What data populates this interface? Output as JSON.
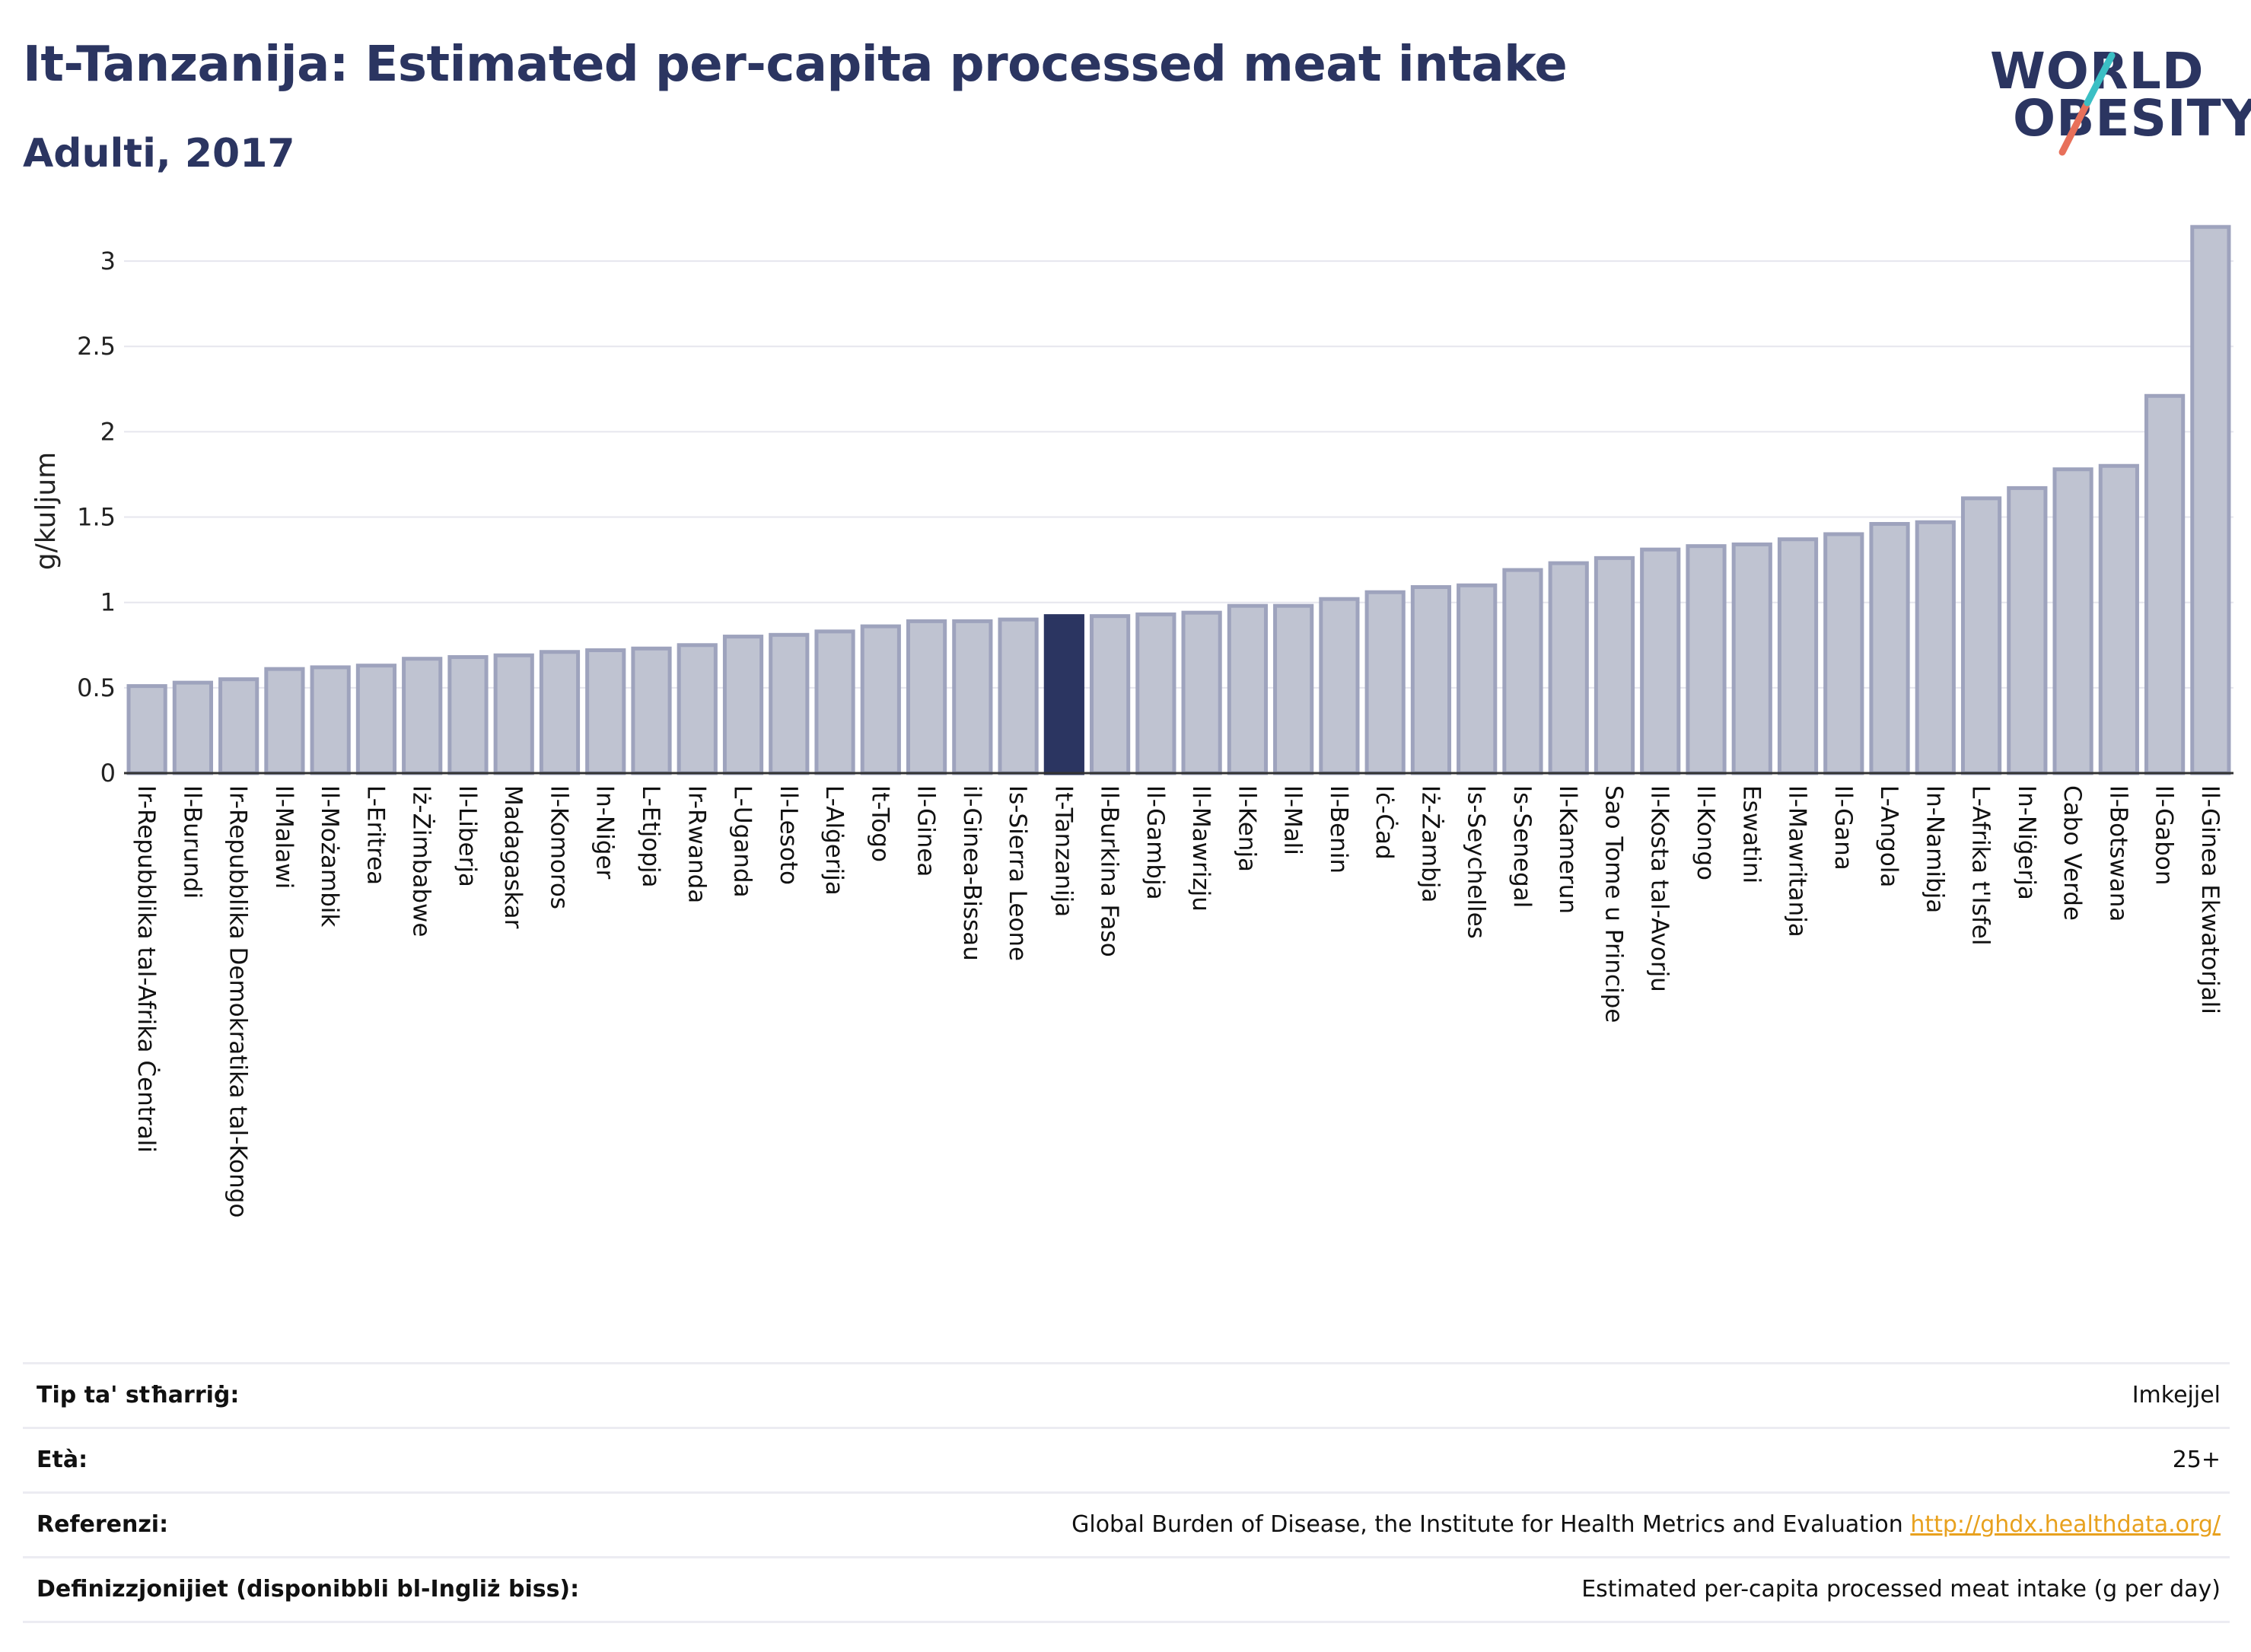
{
  "header": {
    "title": "It-Tanzanija: Estimated per-capita processed meat intake",
    "subtitle": "Adulti, 2017"
  },
  "logo": {
    "line1": "WORLD",
    "line2": "OBESITY",
    "colors": {
      "text": "#2b3561",
      "slash_top": "#3bbfc4",
      "slash_bottom": "#e8705a"
    }
  },
  "colors": {
    "bar_fill": "#bfc3d1",
    "bar_stroke": "#9ea3bd",
    "highlight": "#2b3561",
    "grid": "#e6e6ee",
    "axis": "#333333"
  },
  "chart_data": {
    "type": "bar",
    "ylabel": "g/kuljum",
    "ylim": [
      0,
      3.25
    ],
    "yticks": [
      0,
      0.5,
      1,
      1.5,
      2,
      2.5,
      3
    ],
    "ytick_labels": [
      "0",
      "0.5",
      "1",
      "1.5",
      "2",
      "2.5",
      "3"
    ],
    "grid": true,
    "highlight": "It-Tanzanija",
    "categories": [
      "Ir-Repubblika tal-Afrika Ċentrali",
      "Il-Burundi",
      "Ir-Repubblika Demokratika tal-Kongo",
      "Il-Malawi",
      "Il-Możambik",
      "L-Eritrea",
      "Iż-Żimbabwe",
      "Il-Liberja",
      "Madagaskar",
      "Il-Komoros",
      "In-Niġer",
      "L-Etjopja",
      "Ir-Rwanda",
      "L-Uganda",
      "Il-Lesoto",
      "L-Alġerija",
      "It-Togo",
      "Il-Ginea",
      "il-Ginea-Bissau",
      "Is-Sierra Leone",
      "It-Tanzanija",
      "Il-Burkina Faso",
      "Il-Gambja",
      "Il-Mawrizju",
      "Il-Kenja",
      "Il-Mali",
      "Il-Benin",
      "Iċ-Ċad",
      "Iż-Żambja",
      "Is-Seychelles",
      "Is-Senegal",
      "Il-Kamerun",
      "Sao Tome u Principe",
      "Il-Kosta tal-Avorju",
      "Il-Kongo",
      "Eswatini",
      "Il-Mawritanja",
      "Il-Gana",
      "L-Angola",
      "In-Namibja",
      "L-Afrika t'Isfel",
      "In-Niġerja",
      "Cabo Verde",
      "Il-Botswana",
      "Il-Gabon",
      "Il-Ginea Ekwatorjali"
    ],
    "values": [
      0.51,
      0.53,
      0.55,
      0.61,
      0.62,
      0.63,
      0.67,
      0.68,
      0.69,
      0.71,
      0.72,
      0.73,
      0.75,
      0.8,
      0.81,
      0.83,
      0.86,
      0.89,
      0.89,
      0.9,
      0.92,
      0.92,
      0.93,
      0.94,
      0.98,
      0.98,
      1.02,
      1.06,
      1.09,
      1.1,
      1.19,
      1.23,
      1.26,
      1.31,
      1.33,
      1.34,
      1.37,
      1.4,
      1.46,
      1.47,
      1.61,
      1.67,
      1.78,
      1.8,
      2.21,
      3.2
    ]
  },
  "info": [
    {
      "key": "Tip ta' stħarriġ:",
      "value": "Imkejjel"
    },
    {
      "key": "Età:",
      "value": "25+"
    },
    {
      "key": "Referenzi:",
      "value": "Global Burden of Disease, the Institute for Health Metrics and Evaluation",
      "link": "http://ghdx.healthdata.org/"
    },
    {
      "key": "Definizzjonijiet (disponibbli bl-Ingliż biss):",
      "value": "Estimated per-capita processed meat intake (g per day)"
    }
  ]
}
